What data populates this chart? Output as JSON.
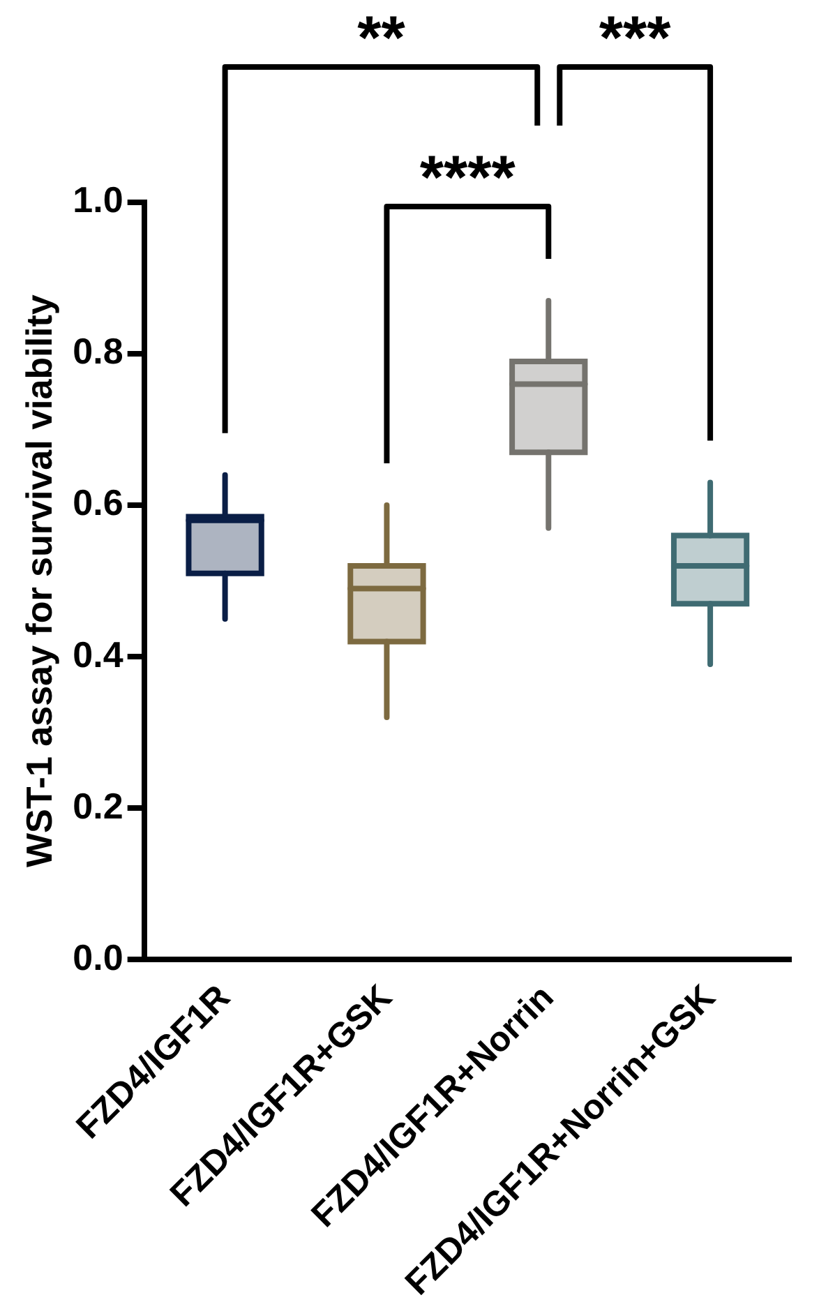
{
  "chart_data": {
    "type": "box",
    "ylabel": "WST-1 assay for survival viability",
    "categories": [
      "FZD4/IGF1R",
      "FZD4/IGF1R+GSK",
      "FZD4/IGF1R+Norrin",
      "FZD4/IGF1R+Norrin+GSK"
    ],
    "boxes": [
      {
        "low": 0.45,
        "q1": 0.51,
        "median": 0.58,
        "q3": 0.585,
        "high": 0.64
      },
      {
        "low": 0.32,
        "q1": 0.42,
        "median": 0.49,
        "q3": 0.52,
        "high": 0.6
      },
      {
        "low": 0.57,
        "q1": 0.67,
        "median": 0.76,
        "q3": 0.79,
        "high": 0.87
      },
      {
        "low": 0.39,
        "q1": 0.47,
        "median": 0.52,
        "q3": 0.56,
        "high": 0.63
      }
    ],
    "colors": [
      "#0a1e46",
      "#7d6a40",
      "#75736e",
      "#3f6b72"
    ],
    "ylim": [
      0,
      1
    ],
    "yticks": [
      {
        "value": 0,
        "label": "0.0"
      },
      {
        "value": 0.2,
        "label": "0.2"
      },
      {
        "value": 0.4,
        "label": "0.4"
      },
      {
        "value": 0.6,
        "label": "0.6"
      },
      {
        "value": 0.8,
        "label": "0.8"
      },
      {
        "value": 1,
        "label": "1.0"
      }
    ],
    "grid": false,
    "annotations": [
      "**",
      "****",
      "***"
    ]
  }
}
